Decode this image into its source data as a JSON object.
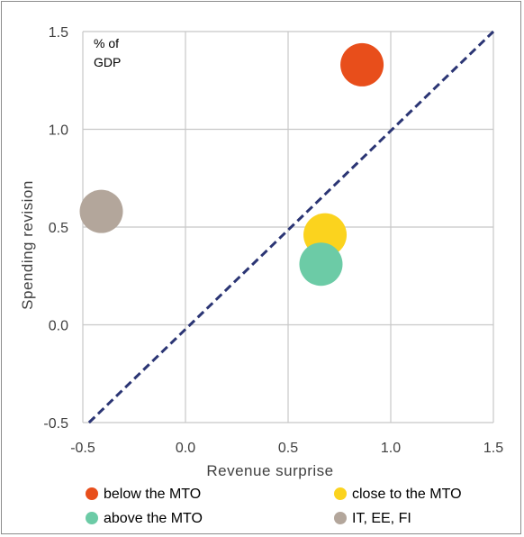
{
  "chart_data": {
    "type": "scatter",
    "annotation": [
      "% of",
      "GDP"
    ],
    "xlabel": "Revenue surprise",
    "ylabel": "Spending revision",
    "xlim": [
      -0.5,
      1.5
    ],
    "ylim": [
      -0.5,
      1.5
    ],
    "x_ticks": [
      -0.5,
      0.0,
      0.5,
      1.0,
      1.5
    ],
    "y_ticks": [
      -0.5,
      0.0,
      0.5,
      1.0,
      1.5
    ],
    "x_tick_labels": [
      "-0.5",
      "0.0",
      "0.5",
      "1.0",
      "1.5"
    ],
    "y_tick_labels": [
      "-0.5",
      "0.0",
      "0.5",
      "1.0",
      "1.5"
    ],
    "grid": true,
    "legend_position": "bottom",
    "series": [
      {
        "name": "below the MTO",
        "color": "#e84e1b",
        "points": [
          {
            "x": 0.86,
            "y": 1.33
          }
        ]
      },
      {
        "name": "close to the MTO",
        "color": "#fbd31e",
        "points": [
          {
            "x": 0.68,
            "y": 0.46
          }
        ]
      },
      {
        "name": "above the MTO",
        "color": "#6ccba6",
        "points": [
          {
            "x": 0.66,
            "y": 0.31
          }
        ]
      },
      {
        "name": "IT, EE, FI",
        "color": "#b3a69b",
        "points": [
          {
            "x": -0.41,
            "y": 0.58
          }
        ]
      }
    ],
    "reference_line": {
      "style": "dashed",
      "color": "#2b3574",
      "from": {
        "x": -0.47,
        "y": -0.5
      },
      "to": {
        "x": 1.5,
        "y": 1.5
      }
    }
  }
}
